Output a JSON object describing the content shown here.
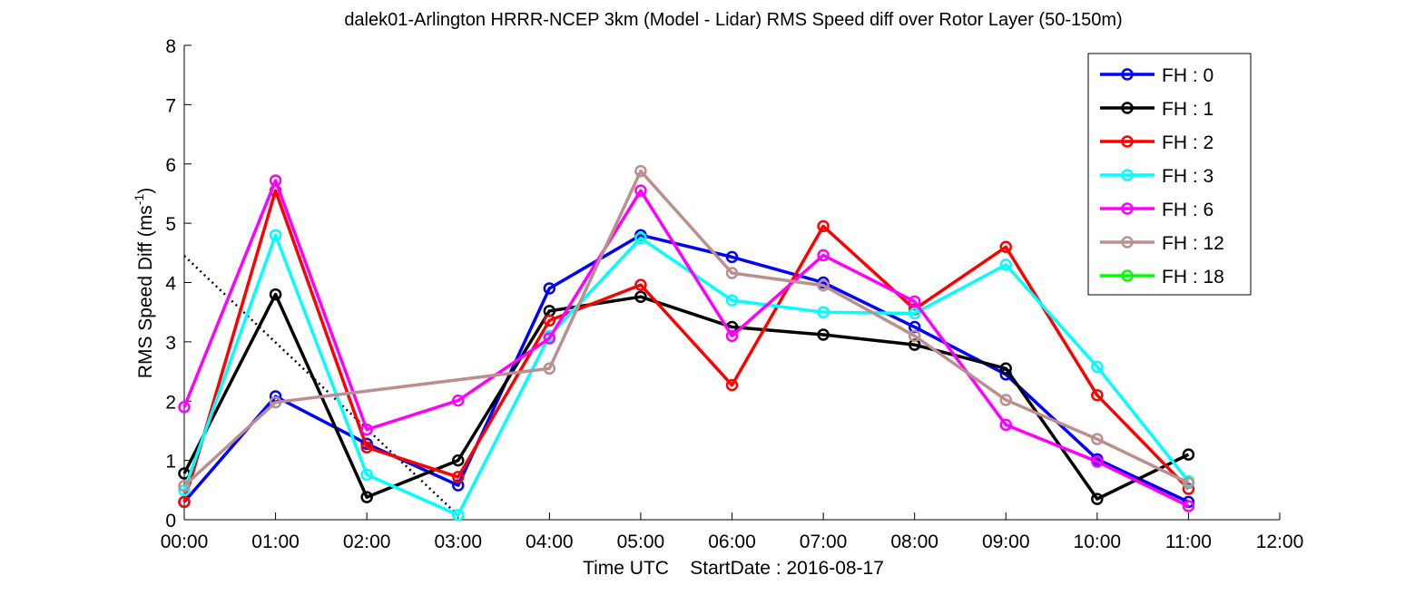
{
  "chart_data": {
    "type": "line",
    "title": "dalek01-Arlington HRRR-NCEP 3km (Model - Lidar) RMS Speed diff over Rotor Layer (50-150m)",
    "xlabel": "Time UTC    StartDate : 2016-08-17",
    "ylabel_main": "RMS Speed Diff (ms",
    "ylabel_sup": "-1",
    "ylabel_close": ")",
    "x_ticks": [
      "00:00",
      "01:00",
      "02:00",
      "03:00",
      "04:00",
      "05:00",
      "06:00",
      "07:00",
      "08:00",
      "09:00",
      "10:00",
      "11:00",
      "12:00"
    ],
    "y_ticks": [
      "0",
      "1",
      "2",
      "3",
      "4",
      "5",
      "6",
      "7",
      "8"
    ],
    "xlim": [
      0,
      12
    ],
    "ylim": [
      0,
      8
    ],
    "legend_position": "top-right",
    "series": [
      {
        "name": "FH : 0",
        "color": "#0000ff",
        "x": [
          0,
          1,
          2,
          3,
          4,
          5,
          6,
          7,
          8,
          9,
          10,
          11
        ],
        "values": [
          0.3,
          2.08,
          1.28,
          0.58,
          3.9,
          4.8,
          4.43,
          4.0,
          3.25,
          2.45,
          1.02,
          0.3
        ]
      },
      {
        "name": "FH : 1",
        "color": "#000000",
        "x": [
          0,
          1,
          2,
          3,
          4,
          5,
          6,
          7,
          8,
          9,
          10,
          11
        ],
        "values": [
          0.78,
          3.8,
          0.38,
          1.0,
          3.52,
          3.76,
          3.25,
          3.12,
          2.95,
          2.55,
          0.35,
          1.1
        ]
      },
      {
        "name": "FH : 2",
        "color": "#ff0000",
        "x": [
          0,
          1,
          2,
          3,
          4,
          5,
          6,
          7,
          8,
          9,
          10,
          11
        ],
        "values": [
          0.3,
          5.55,
          1.22,
          0.72,
          3.36,
          3.96,
          2.27,
          4.95,
          3.55,
          4.6,
          2.1,
          0.52
        ]
      },
      {
        "name": "FH : 3",
        "color": "#00ffff",
        "x": [
          0,
          1,
          2,
          3,
          4,
          5,
          6,
          7,
          8,
          9,
          10,
          11
        ],
        "values": [
          0.5,
          4.8,
          0.76,
          0.08,
          3.1,
          4.75,
          3.7,
          3.5,
          3.48,
          4.3,
          2.58,
          0.65
        ]
      },
      {
        "name": "FH : 6",
        "color": "#ff00ff",
        "x": [
          0,
          1,
          2,
          3,
          4,
          5,
          6,
          7,
          8,
          9,
          10,
          11
        ],
        "values": [
          1.9,
          5.72,
          1.52,
          2.01,
          3.06,
          5.55,
          3.1,
          4.46,
          3.68,
          1.6,
          0.98,
          0.23
        ]
      },
      {
        "name": "FH : 12",
        "color": "#bc8f8f",
        "x": [
          0,
          1,
          4,
          5,
          6,
          7,
          8,
          9,
          10,
          11
        ],
        "values": [
          0.57,
          1.98,
          2.55,
          5.88,
          4.16,
          3.95,
          3.1,
          2.02,
          1.36,
          0.62
        ]
      },
      {
        "name": "FH : 18",
        "color": "#00ff00",
        "x": [],
        "values": []
      }
    ],
    "dotted_lines": [
      {
        "color": "#000000",
        "x": [
          0,
          3.05
        ],
        "values": [
          4.45,
          0
        ]
      }
    ],
    "dashed_lines": [
      {
        "color": "#c07070",
        "x": [
          1,
          4
        ],
        "values": [
          1.98,
          2.55
        ]
      }
    ]
  }
}
